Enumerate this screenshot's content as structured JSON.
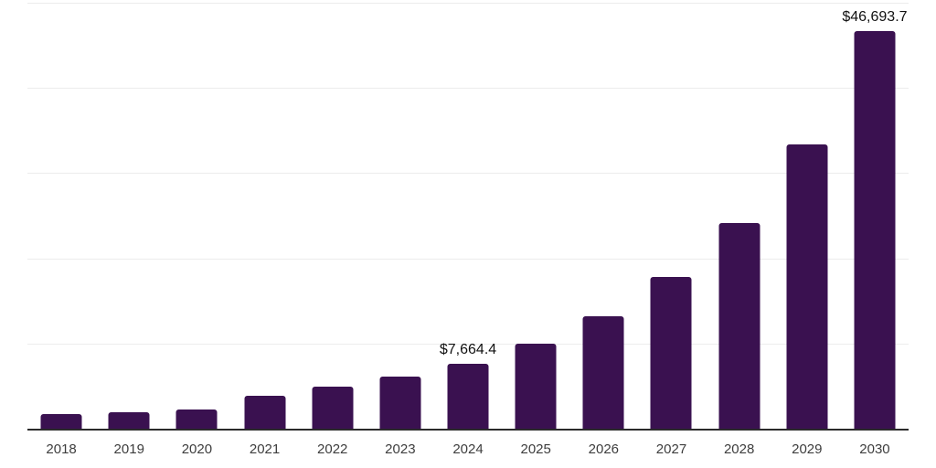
{
  "chart_data": {
    "type": "bar",
    "title": "",
    "xlabel": "",
    "ylabel": "",
    "categories": [
      "2018",
      "2019",
      "2020",
      "2021",
      "2022",
      "2023",
      "2024",
      "2025",
      "2026",
      "2027",
      "2028",
      "2029",
      "2030"
    ],
    "values": [
      1750,
      1920,
      2210,
      3820,
      4890,
      6100,
      7664.4,
      9990,
      13200,
      17830,
      24100,
      33400,
      46693.7
    ],
    "bar_labels": [
      "",
      "",
      "",
      "",
      "",
      "",
      "$7,664.4",
      "",
      "",
      "",
      "",
      "",
      "$46,693.7"
    ],
    "ylim": [
      0,
      50000
    ],
    "gridline_step": 10000,
    "grid": "horizontal",
    "legend_position": "none",
    "y_axis_tick_labels_visible": false
  },
  "colors": {
    "bar": "#3A1150",
    "gridline": "#ECECEC",
    "axis_line": "#2B2B2B",
    "value_label": "#111111",
    "tick_label": "#3D3D3D",
    "background": "#FFFFFF"
  }
}
